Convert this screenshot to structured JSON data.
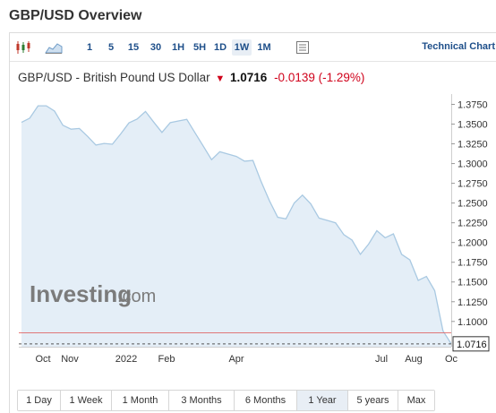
{
  "page": {
    "title": "GBP/USD Overview"
  },
  "toolbar": {
    "icons": [
      "candlestick-icon",
      "area-chart-icon",
      "settings-panel-icon"
    ],
    "intervals": [
      "1",
      "5",
      "15",
      "30",
      "1H",
      "5H",
      "1D",
      "1W",
      "1M"
    ],
    "active_interval": "1W",
    "technical_link": "Technical Chart"
  },
  "quote": {
    "name": "GBP/USD - British Pound US Dollar",
    "price": "1.0716",
    "change": "-0.0139",
    "change_pct": "(-1.29%)",
    "direction": "down",
    "down_color": "#d0021b"
  },
  "watermark": {
    "brand": "Investing",
    "suffix": ".com"
  },
  "chart_data": {
    "type": "area",
    "x_tick_labels": [
      "Oct",
      "Nov",
      "2022",
      "Feb",
      "Apr",
      "Jul",
      "Aug",
      "Oc"
    ],
    "y_ticks": [
      1.375,
      1.35,
      1.325,
      1.3,
      1.275,
      1.25,
      1.225,
      1.2,
      1.175,
      1.15,
      1.125,
      1.1
    ],
    "y_tick_labels": [
      "1.3750",
      "1.3500",
      "1.3250",
      "1.3000",
      "1.2750",
      "1.2500",
      "1.2250",
      "1.2000",
      "1.1750",
      "1.1500",
      "1.1250",
      "1.1000"
    ],
    "ylim": [
      1.068,
      1.3835
    ],
    "series": [
      {
        "values": [
          1.3522,
          1.3575,
          1.3732,
          1.3732,
          1.3665,
          1.3485,
          1.3435,
          1.3445,
          1.3345,
          1.3235,
          1.3255,
          1.3245,
          1.3375,
          1.3515,
          1.3565,
          1.366,
          1.3525,
          1.3395,
          1.352,
          1.354,
          1.356,
          1.339,
          1.322,
          1.305,
          1.315,
          1.312,
          1.309,
          1.303,
          1.304,
          1.277,
          1.253,
          1.232,
          1.23,
          1.25,
          1.26,
          1.249,
          1.231,
          1.228,
          1.225,
          1.21,
          1.203,
          1.185,
          1.198,
          1.215,
          1.206,
          1.211,
          1.185,
          1.178,
          1.152,
          1.157,
          1.139,
          1.088,
          1.0716
        ],
        "line_color": "#a9c9e2",
        "fill_color": "#e4eef7"
      }
    ],
    "last_value": 1.0716,
    "last_label": "1.0716",
    "reference_value": 1.0855,
    "reference_color": "#e06666",
    "grid": false
  },
  "ranges": {
    "items": [
      "1 Day",
      "1 Week",
      "1 Month",
      "3 Months",
      "6 Months",
      "1 Year",
      "5 years",
      "Max"
    ],
    "active": "1 Year"
  }
}
